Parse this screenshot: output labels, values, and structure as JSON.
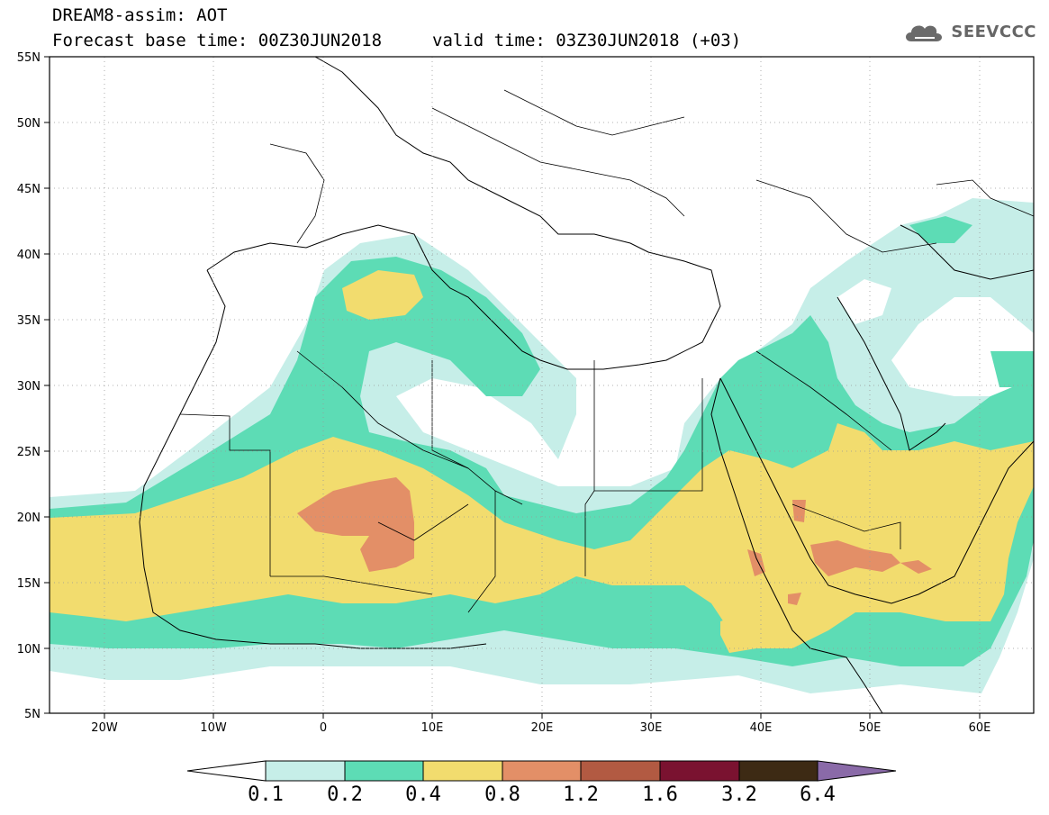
{
  "header": {
    "line1": "DREAM8-assim: AOT",
    "line2": "Forecast base time: 00Z30JUN2018",
    "valid": "valid time: 03Z30JUN2018 (+03)"
  },
  "logo": {
    "text": "SEEVCCC",
    "icon": "cloud-icon"
  },
  "map": {
    "lat_labels": [
      "55N",
      "50N",
      "45N",
      "40N",
      "35N",
      "30N",
      "25N",
      "20N",
      "15N",
      "10N",
      "5N"
    ],
    "lon_labels": [
      "20W",
      "10W",
      "0",
      "10E",
      "20E",
      "30E",
      "40E",
      "50E",
      "60E"
    ],
    "lon_range": [
      -25,
      65
    ],
    "lat_range": [
      5,
      55
    ]
  },
  "legend": {
    "labels": [
      "0.1",
      "0.2",
      "0.4",
      "0.8",
      "1.2",
      "1.6",
      "3.2",
      "6.4"
    ],
    "colors": [
      "#ffffff",
      "#c6eee8",
      "#5ddcb5",
      "#f2dc6e",
      "#e38f67",
      "#b25a42",
      "#7a1230",
      "#3d2a14",
      "#8a6aa8"
    ]
  }
}
